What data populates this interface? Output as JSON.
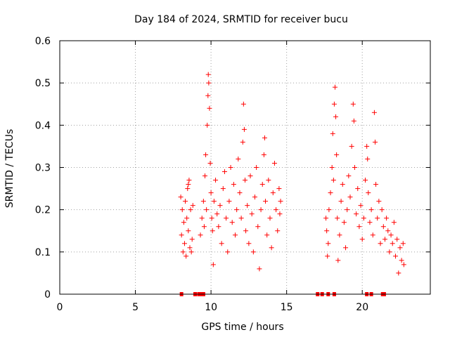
{
  "chart_data": {
    "type": "scatter",
    "title": "Day 184 of 2024, SRMTID for receiver bucu",
    "xlabel": "GPS time / hours",
    "ylabel": "SRMTID / TECUs",
    "xlim": [
      0,
      24.5
    ],
    "ylim": [
      0,
      0.6
    ],
    "xticks": [
      0,
      5,
      10,
      15,
      20
    ],
    "yticks": [
      0,
      0.1,
      0.2,
      0.3,
      0.4,
      0.5,
      0.6
    ],
    "ytick_labels": [
      "0",
      "0.1",
      "0.2",
      "0.3",
      "0.4",
      "0.5",
      "0.6"
    ],
    "grid": true,
    "marker": "+",
    "color": "#ff0000",
    "series": [
      {
        "points": [
          [
            8.0,
            0.23
          ],
          [
            8.05,
            0.14
          ],
          [
            8.1,
            0.2
          ],
          [
            8.15,
            0.1
          ],
          [
            8.2,
            0.17
          ],
          [
            8.25,
            0.12
          ],
          [
            8.3,
            0.22
          ],
          [
            8.35,
            0.09
          ],
          [
            8.4,
            0.18
          ],
          [
            8.45,
            0.25
          ],
          [
            8.5,
            0.15
          ],
          [
            8.55,
            0.27
          ],
          [
            8.6,
            0.11
          ],
          [
            8.65,
            0.2
          ],
          [
            8.7,
            0.1
          ],
          [
            8.75,
            0.13
          ],
          [
            8.8,
            0.21
          ],
          [
            8.5,
            0.26
          ],
          [
            9.3,
            0.14
          ],
          [
            9.4,
            0.18
          ],
          [
            9.5,
            0.22
          ],
          [
            9.55,
            0.16
          ],
          [
            9.6,
            0.28
          ],
          [
            9.65,
            0.33
          ],
          [
            9.7,
            0.2
          ],
          [
            9.75,
            0.4
          ],
          [
            9.8,
            0.47
          ],
          [
            9.82,
            0.52
          ],
          [
            9.85,
            0.5
          ],
          [
            9.9,
            0.44
          ],
          [
            9.95,
            0.31
          ],
          [
            10.0,
            0.24
          ],
          [
            10.05,
            0.18
          ],
          [
            10.1,
            0.15
          ],
          [
            10.15,
            0.07
          ],
          [
            10.2,
            0.22
          ],
          [
            10.3,
            0.27
          ],
          [
            10.4,
            0.19
          ],
          [
            10.5,
            0.16
          ],
          [
            10.6,
            0.21
          ],
          [
            10.7,
            0.12
          ],
          [
            10.8,
            0.25
          ],
          [
            10.9,
            0.29
          ],
          [
            11.0,
            0.18
          ],
          [
            11.1,
            0.1
          ],
          [
            11.2,
            0.22
          ],
          [
            11.3,
            0.3
          ],
          [
            11.4,
            0.17
          ],
          [
            11.5,
            0.26
          ],
          [
            11.6,
            0.14
          ],
          [
            11.7,
            0.2
          ],
          [
            11.8,
            0.32
          ],
          [
            11.9,
            0.24
          ],
          [
            12.0,
            0.18
          ],
          [
            12.1,
            0.36
          ],
          [
            12.15,
            0.45
          ],
          [
            12.2,
            0.39
          ],
          [
            12.25,
            0.27
          ],
          [
            12.3,
            0.15
          ],
          [
            12.4,
            0.21
          ],
          [
            12.5,
            0.12
          ],
          [
            12.6,
            0.28
          ],
          [
            12.7,
            0.19
          ],
          [
            12.8,
            0.1
          ],
          [
            12.9,
            0.23
          ],
          [
            13.0,
            0.3
          ],
          [
            13.1,
            0.16
          ],
          [
            13.2,
            0.06
          ],
          [
            13.3,
            0.2
          ],
          [
            13.4,
            0.26
          ],
          [
            13.5,
            0.33
          ],
          [
            13.55,
            0.37
          ],
          [
            13.6,
            0.22
          ],
          [
            13.7,
            0.14
          ],
          [
            13.8,
            0.27
          ],
          [
            13.9,
            0.18
          ],
          [
            14.0,
            0.11
          ],
          [
            14.1,
            0.24
          ],
          [
            14.2,
            0.31
          ],
          [
            14.3,
            0.2
          ],
          [
            14.4,
            0.15
          ],
          [
            14.5,
            0.25
          ],
          [
            14.55,
            0.19
          ],
          [
            14.6,
            0.22
          ],
          [
            17.6,
            0.18
          ],
          [
            17.65,
            0.15
          ],
          [
            17.7,
            0.09
          ],
          [
            17.75,
            0.12
          ],
          [
            17.8,
            0.2
          ],
          [
            17.9,
            0.24
          ],
          [
            18.0,
            0.3
          ],
          [
            18.05,
            0.38
          ],
          [
            18.1,
            0.27
          ],
          [
            18.15,
            0.45
          ],
          [
            18.2,
            0.49
          ],
          [
            18.25,
            0.42
          ],
          [
            18.3,
            0.33
          ],
          [
            18.35,
            0.18
          ],
          [
            18.4,
            0.08
          ],
          [
            18.5,
            0.14
          ],
          [
            18.6,
            0.22
          ],
          [
            18.7,
            0.26
          ],
          [
            18.8,
            0.17
          ],
          [
            18.9,
            0.11
          ],
          [
            19.0,
            0.2
          ],
          [
            19.1,
            0.28
          ],
          [
            19.2,
            0.23
          ],
          [
            19.3,
            0.35
          ],
          [
            19.4,
            0.45
          ],
          [
            19.45,
            0.41
          ],
          [
            19.5,
            0.3
          ],
          [
            19.6,
            0.19
          ],
          [
            19.7,
            0.25
          ],
          [
            19.8,
            0.16
          ],
          [
            19.9,
            0.21
          ],
          [
            20.0,
            0.13
          ],
          [
            20.1,
            0.18
          ],
          [
            20.2,
            0.27
          ],
          [
            20.3,
            0.35
          ],
          [
            20.35,
            0.32
          ],
          [
            20.4,
            0.24
          ],
          [
            20.5,
            0.17
          ],
          [
            20.6,
            0.2
          ],
          [
            20.7,
            0.14
          ],
          [
            20.8,
            0.43
          ],
          [
            20.85,
            0.36
          ],
          [
            20.9,
            0.26
          ],
          [
            21.0,
            0.18
          ],
          [
            21.1,
            0.22
          ],
          [
            21.2,
            0.12
          ],
          [
            21.3,
            0.2
          ],
          [
            21.4,
            0.16
          ],
          [
            21.5,
            0.13
          ],
          [
            21.6,
            0.18
          ],
          [
            21.7,
            0.15
          ],
          [
            21.8,
            0.1
          ],
          [
            21.9,
            0.14
          ],
          [
            22.0,
            0.12
          ],
          [
            22.1,
            0.17
          ],
          [
            22.2,
            0.09
          ],
          [
            22.3,
            0.13
          ],
          [
            22.4,
            0.05
          ],
          [
            22.5,
            0.11
          ],
          [
            22.6,
            0.08
          ],
          [
            22.7,
            0.12
          ],
          [
            22.75,
            0.07
          ]
        ]
      }
    ],
    "zero_markers": [
      8.05,
      8.95,
      9.2,
      9.35,
      9.5,
      17.05,
      17.35,
      17.75,
      18.15,
      20.3,
      20.6,
      21.35,
      21.45
    ]
  }
}
